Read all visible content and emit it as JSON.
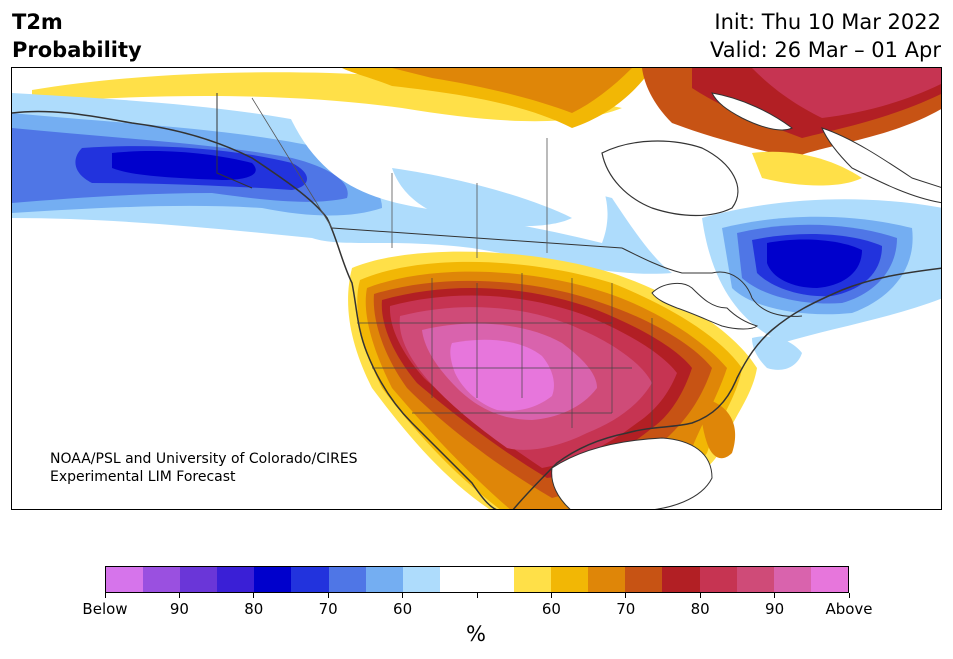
{
  "header": {
    "title_line1": "T2m",
    "title_line2": "Probability",
    "init_text": "Init: Thu 10 Mar 2022",
    "valid_text": "Valid: 26 Mar – 01 Apr"
  },
  "map": {
    "credit_line1": "NOAA/PSL and University of Colorado/CIRES",
    "credit_line2": "Experimental LIM Forecast"
  },
  "colorbar": {
    "colors": [
      "#d674eb",
      "#9a50e0",
      "#6a36d8",
      "#3a1fd6",
      "#0000cc",
      "#2233dd",
      "#4f76e6",
      "#74aef2",
      "#aedcfc",
      "#ffffff",
      "#ffffff",
      "#ffe048",
      "#f2b705",
      "#df8608",
      "#c75314",
      "#b21f24",
      "#c63452",
      "#cf4b78",
      "#d963ad",
      "#e776dc"
    ],
    "labels": [
      "Below",
      "90",
      "80",
      "70",
      "60",
      "",
      "60",
      "70",
      "80",
      "90",
      "Above"
    ],
    "unit": "%"
  }
}
